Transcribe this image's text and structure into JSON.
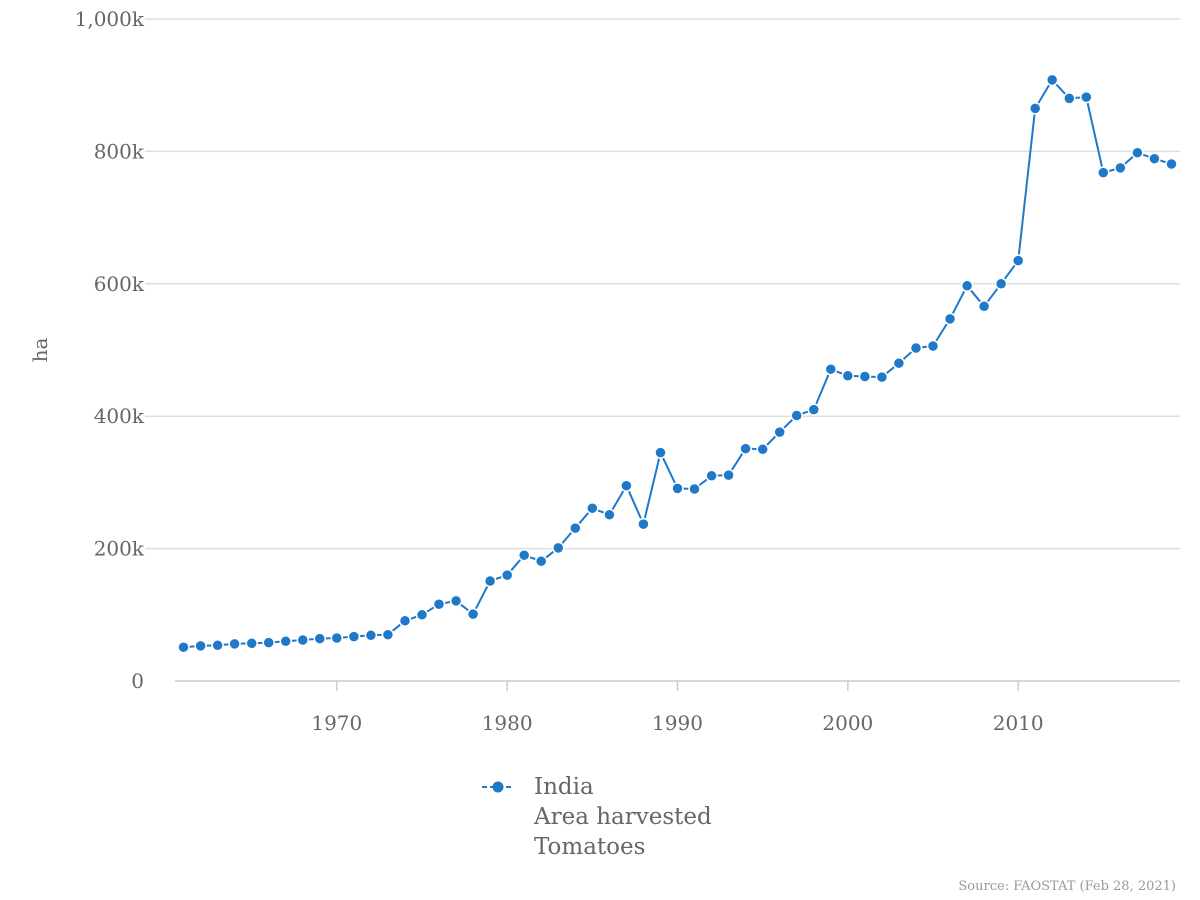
{
  "chart_data": {
    "type": "line",
    "ylabel": "ha",
    "ylim": [
      0,
      1000000
    ],
    "y_ticks": [
      {
        "value": 0,
        "label": "0"
      },
      {
        "value": 200000,
        "label": "200k"
      },
      {
        "value": 400000,
        "label": "400k"
      },
      {
        "value": 600000,
        "label": "600k"
      },
      {
        "value": 800000,
        "label": "800k"
      },
      {
        "value": 1000000,
        "label": "1,000k"
      }
    ],
    "xlim": [
      1960.5,
      2019.5
    ],
    "x_ticks": [
      1970,
      1980,
      1990,
      2000,
      2010
    ],
    "grid": "horizontal",
    "legend_position": "bottom",
    "color": "#1f78c8",
    "series": [
      {
        "name": "India",
        "legend_lines": [
          "India",
          "Area harvested",
          "Tomatoes"
        ],
        "x": [
          1961,
          1962,
          1963,
          1964,
          1965,
          1966,
          1967,
          1968,
          1969,
          1970,
          1971,
          1972,
          1973,
          1974,
          1975,
          1976,
          1977,
          1978,
          1979,
          1980,
          1981,
          1982,
          1983,
          1984,
          1985,
          1986,
          1987,
          1988,
          1989,
          1990,
          1991,
          1992,
          1993,
          1994,
          1995,
          1996,
          1997,
          1998,
          1999,
          2000,
          2001,
          2002,
          2003,
          2004,
          2005,
          2006,
          2007,
          2008,
          2009,
          2010,
          2011,
          2012,
          2013,
          2014,
          2015,
          2016,
          2017,
          2018,
          2019
        ],
        "values": [
          51000,
          53000,
          54000,
          56000,
          57000,
          58000,
          60000,
          62000,
          64000,
          65000,
          67000,
          69000,
          70000,
          91000,
          100000,
          116000,
          121000,
          101000,
          151000,
          160000,
          190000,
          181000,
          201000,
          231000,
          261000,
          251000,
          295000,
          237000,
          345000,
          291000,
          290000,
          310000,
          311000,
          351000,
          350000,
          376000,
          401000,
          410000,
          471000,
          461000,
          460000,
          459000,
          480000,
          503000,
          506000,
          547000,
          597000,
          566000,
          600000,
          635000,
          865000,
          908000,
          880000,
          882000,
          768000,
          775000,
          798000,
          789000,
          781000
        ]
      }
    ],
    "source": "Source: FAOSTAT (Feb 28, 2021)"
  }
}
